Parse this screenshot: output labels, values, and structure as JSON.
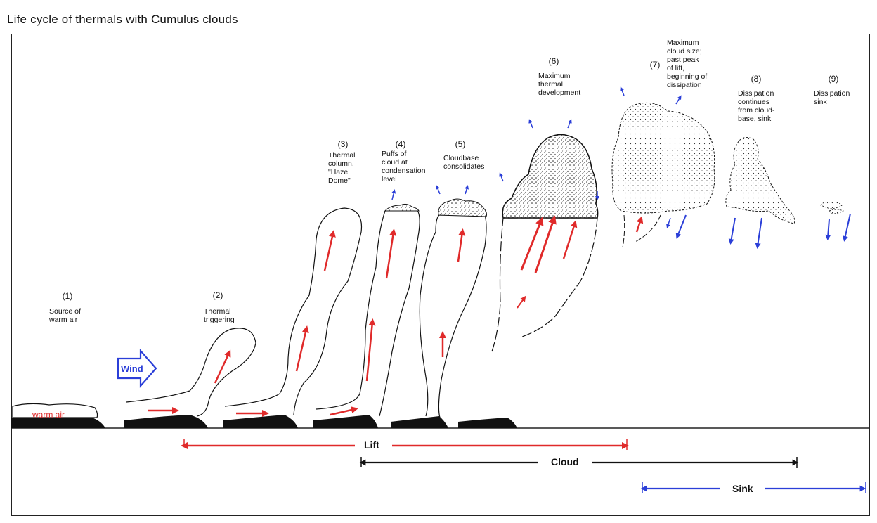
{
  "title": "Life cycle of thermals with Cumulus clouds",
  "stages": [
    {
      "num": "(1)",
      "lines": [
        "Source of",
        "warm air"
      ]
    },
    {
      "num": "(2)",
      "lines": [
        "Thermal",
        "triggering"
      ]
    },
    {
      "num": "(3)",
      "lines": [
        "Thermal",
        "column,",
        "\"Haze",
        "Dome\""
      ]
    },
    {
      "num": "(4)",
      "lines": [
        "Puffs of",
        "cloud at",
        "condensation",
        "level"
      ]
    },
    {
      "num": "(5)",
      "lines": [
        "Cloudbase",
        "consolidates"
      ]
    },
    {
      "num": "(6)",
      "lines": [
        "Maximum",
        "thermal",
        "development"
      ]
    },
    {
      "num": "(7)",
      "lines": [
        "Maximum",
        "cloud size;",
        "past peak",
        "of lift,",
        "beginning of",
        "dissipation"
      ]
    },
    {
      "num": "(8)",
      "lines": [
        "Dissipation",
        "continues",
        "from cloud-",
        "base, sink"
      ]
    },
    {
      "num": "(9)",
      "lines": [
        "Dissipation",
        "sink"
      ]
    }
  ],
  "warm_air_label": "warm air",
  "wind_label": "Wind",
  "timeline": {
    "lift": "Lift",
    "cloud": "Cloud",
    "sink": "Sink"
  },
  "colors": {
    "red": "#e02a2a",
    "blue": "#2b3fd8",
    "black": "#111111"
  }
}
